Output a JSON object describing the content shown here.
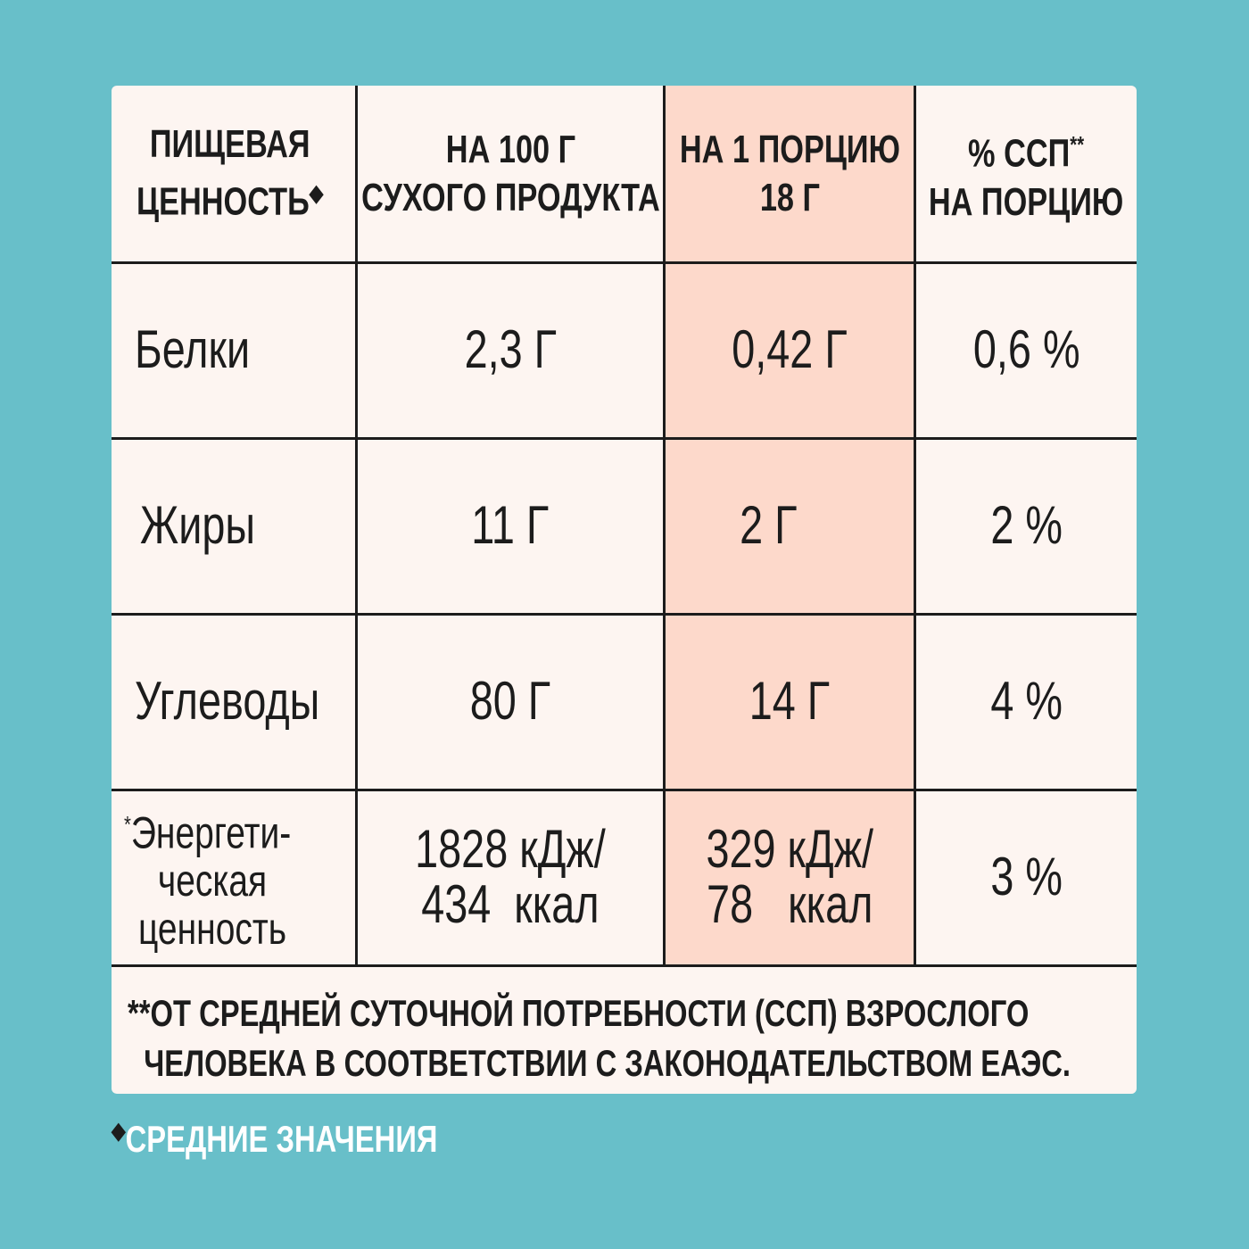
{
  "colors": {
    "background": "#68bfc9",
    "card": "#fdf5f1",
    "highlight": "#fdd9cb",
    "text": "#1c1c1c"
  },
  "header": {
    "col1_line1": "ПИЩЕВАЯ",
    "col1_line2": "ЦЕННОСТЬ",
    "col1_mark": "◆",
    "col2_line1": "НА 100 Г",
    "col2_line2": "СУХОГО ПРОДУКТА",
    "col3_line1": "НА 1 ПОРЦИЮ",
    "col3_line2": "18 Г",
    "col4_line1": "% ССП",
    "col4_mark": "**",
    "col4_line2": "НА ПОРЦИЮ"
  },
  "rows": [
    {
      "name": "Белки",
      "per100": "2,3 Г",
      "portion": "0,42 Г",
      "pct": "0,6 %"
    },
    {
      "name": "Жиры",
      "per100": "11 Г",
      "portion": "2 Г",
      "pct": "2 %"
    },
    {
      "name": "Углеводы",
      "per100": "80 Г",
      "portion": "14 Г",
      "pct": "4 %"
    }
  ],
  "energy": {
    "mark": "*",
    "name_line1": "Энергети-",
    "name_line2": "ческая",
    "name_line3": "ценность",
    "per100_line1": "1828 кДж/",
    "per100_line2": "434  ккал",
    "portion_line1": "329 кДж/",
    "portion_line2": "78   ккал",
    "pct": "3 %"
  },
  "footnote": {
    "line1": "**ОТ СРЕДНЕЙ СУТОЧНОЙ ПОТРЕБНОСТИ (ССП) ВЗРОСЛОГО",
    "line2": "ЧЕЛОВЕКА В СООТВЕТСТВИИ С ЗАКОНОДАТЕЛЬСТВОМ ЕАЭС."
  },
  "bottom_note": {
    "mark": "◆",
    "text": "СРЕДНИЕ ЗНАЧЕНИЯ"
  }
}
